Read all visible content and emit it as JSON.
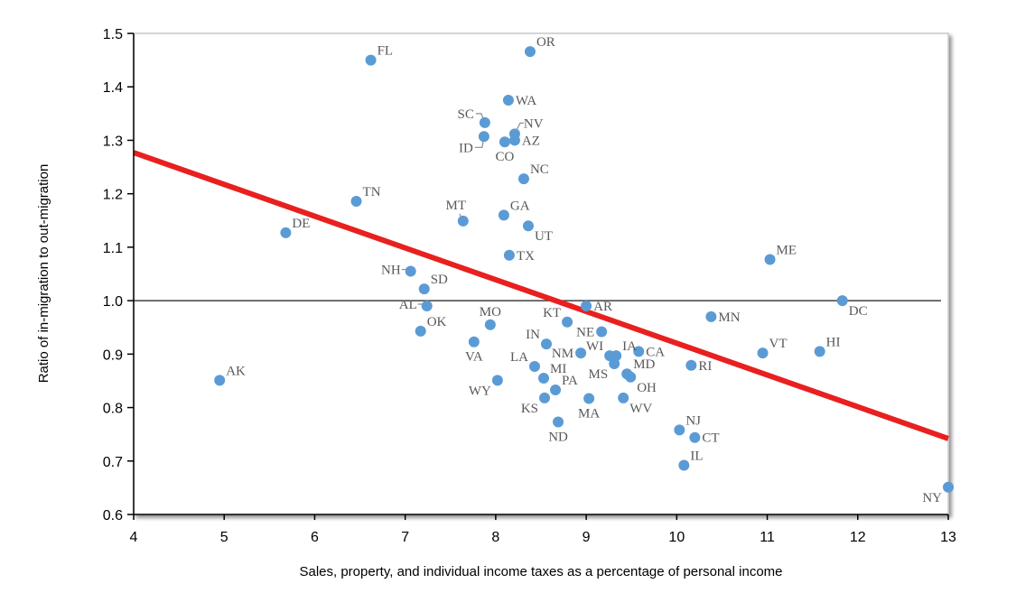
{
  "chart_data": {
    "type": "scatter",
    "title": "",
    "xlabel": "Sales, property, and individual income taxes as a percentage of personal income",
    "ylabel": "Ratio of in-migration to out-migration",
    "xlim": [
      4,
      13
    ],
    "ylim": [
      0.6,
      1.5
    ],
    "xticks": [
      4,
      5,
      6,
      7,
      8,
      9,
      10,
      11,
      12,
      13
    ],
    "yticks": [
      0.6,
      0.7,
      0.8,
      0.9,
      1.0,
      1.1,
      1.2,
      1.3,
      1.4,
      1.5
    ],
    "xtick_labels": [
      "4",
      "5",
      "6",
      "7",
      "8",
      "9",
      "10",
      "11",
      "12",
      "13"
    ],
    "ytick_labels": [
      "0.6",
      "0.7",
      "0.8",
      "0.9",
      "1.0",
      "1.1",
      "1.2",
      "1.3",
      "1.4",
      "1.5"
    ],
    "grid": false,
    "reference_line": {
      "y": 1.0,
      "color": "#404040"
    },
    "trendline": {
      "x": [
        4,
        13
      ],
      "y": [
        1.277,
        0.742
      ],
      "color": "#e8201f"
    },
    "marker_color": "#5b9bd5",
    "label_color": "#595959",
    "points": [
      {
        "label": "FL",
        "x": 6.62,
        "y": 1.45,
        "pos": "ne"
      },
      {
        "label": "OR",
        "x": 8.38,
        "y": 1.466,
        "pos": "ne"
      },
      {
        "label": "WA",
        "x": 8.14,
        "y": 1.375,
        "pos": "e"
      },
      {
        "label": "SC",
        "x": 7.88,
        "y": 1.333,
        "pos": "leader-nw"
      },
      {
        "label": "ID",
        "x": 7.87,
        "y": 1.307,
        "pos": "leader-sw"
      },
      {
        "label": "CO",
        "x": 8.1,
        "y": 1.297,
        "pos": "s"
      },
      {
        "label": "NV",
        "x": 8.21,
        "y": 1.312,
        "pos": "leader-ne"
      },
      {
        "label": "AZ",
        "x": 8.21,
        "y": 1.3,
        "pos": "e"
      },
      {
        "label": "NC",
        "x": 8.31,
        "y": 1.228,
        "pos": "ne"
      },
      {
        "label": "TN",
        "x": 6.46,
        "y": 1.186,
        "pos": "ne"
      },
      {
        "label": "MT",
        "x": 7.64,
        "y": 1.149,
        "pos": "leader-n"
      },
      {
        "label": "GA",
        "x": 8.09,
        "y": 1.16,
        "pos": "ne"
      },
      {
        "label": "UT",
        "x": 8.36,
        "y": 1.14,
        "pos": "se"
      },
      {
        "label": "DE",
        "x": 5.68,
        "y": 1.127,
        "pos": "ne"
      },
      {
        "label": "TX",
        "x": 8.15,
        "y": 1.085,
        "pos": "e"
      },
      {
        "label": "ME",
        "x": 11.03,
        "y": 1.077,
        "pos": "ne"
      },
      {
        "label": "NH",
        "x": 7.06,
        "y": 1.055,
        "pos": "leader-w"
      },
      {
        "label": "SD",
        "x": 7.21,
        "y": 1.022,
        "pos": "ne"
      },
      {
        "label": "AL",
        "x": 7.24,
        "y": 0.99,
        "pos": "leader-w"
      },
      {
        "label": "DC",
        "x": 11.83,
        "y": 1.0,
        "pos": "se"
      },
      {
        "label": "AR",
        "x": 9.0,
        "y": 0.99,
        "pos": "e"
      },
      {
        "label": "MN",
        "x": 10.38,
        "y": 0.97,
        "pos": "e"
      },
      {
        "label": "MO",
        "x": 7.94,
        "y": 0.955,
        "pos": "n"
      },
      {
        "label": "KT",
        "x": 8.79,
        "y": 0.96,
        "pos": "nw"
      },
      {
        "label": "NE",
        "x": 9.17,
        "y": 0.942,
        "pos": "w"
      },
      {
        "label": "OK",
        "x": 7.17,
        "y": 0.943,
        "pos": "ne"
      },
      {
        "label": "VA",
        "x": 7.76,
        "y": 0.923,
        "pos": "s"
      },
      {
        "label": "IN",
        "x": 8.56,
        "y": 0.919,
        "pos": "nw"
      },
      {
        "label": "NM",
        "x": 8.94,
        "y": 0.902,
        "pos": "w"
      },
      {
        "label": "WI",
        "x": 9.26,
        "y": 0.897,
        "pos": "nw"
      },
      {
        "label": "IA",
        "x": 9.33,
        "y": 0.897,
        "pos": "ne"
      },
      {
        "label": "CA",
        "x": 9.58,
        "y": 0.905,
        "pos": "e"
      },
      {
        "label": "VT",
        "x": 10.95,
        "y": 0.902,
        "pos": "ne"
      },
      {
        "label": "HI",
        "x": 11.58,
        "y": 0.905,
        "pos": "ne"
      },
      {
        "label": "MS",
        "x": 9.31,
        "y": 0.882,
        "pos": "sw"
      },
      {
        "label": "LA",
        "x": 8.43,
        "y": 0.877,
        "pos": "nw"
      },
      {
        "label": "MD",
        "x": 9.45,
        "y": 0.863,
        "pos": "ne"
      },
      {
        "label": "OH",
        "x": 9.49,
        "y": 0.857,
        "pos": "se"
      },
      {
        "label": "RI",
        "x": 10.16,
        "y": 0.879,
        "pos": "e"
      },
      {
        "label": "MI",
        "x": 8.53,
        "y": 0.855,
        "pos": "ne"
      },
      {
        "label": "AK",
        "x": 4.95,
        "y": 0.851,
        "pos": "ne"
      },
      {
        "label": "WY",
        "x": 8.02,
        "y": 0.851,
        "pos": "sw"
      },
      {
        "label": "PA",
        "x": 8.66,
        "y": 0.833,
        "pos": "ne"
      },
      {
        "label": "KS",
        "x": 8.54,
        "y": 0.818,
        "pos": "sw"
      },
      {
        "label": "MA",
        "x": 9.03,
        "y": 0.817,
        "pos": "s"
      },
      {
        "label": "WV",
        "x": 9.41,
        "y": 0.818,
        "pos": "se"
      },
      {
        "label": "ND",
        "x": 8.69,
        "y": 0.773,
        "pos": "s"
      },
      {
        "label": "NJ",
        "x": 10.03,
        "y": 0.758,
        "pos": "ne"
      },
      {
        "label": "CT",
        "x": 10.2,
        "y": 0.744,
        "pos": "e"
      },
      {
        "label": "IL",
        "x": 10.08,
        "y": 0.692,
        "pos": "ne"
      },
      {
        "label": "NY",
        "x": 13.0,
        "y": 0.651,
        "pos": "sw"
      }
    ]
  }
}
